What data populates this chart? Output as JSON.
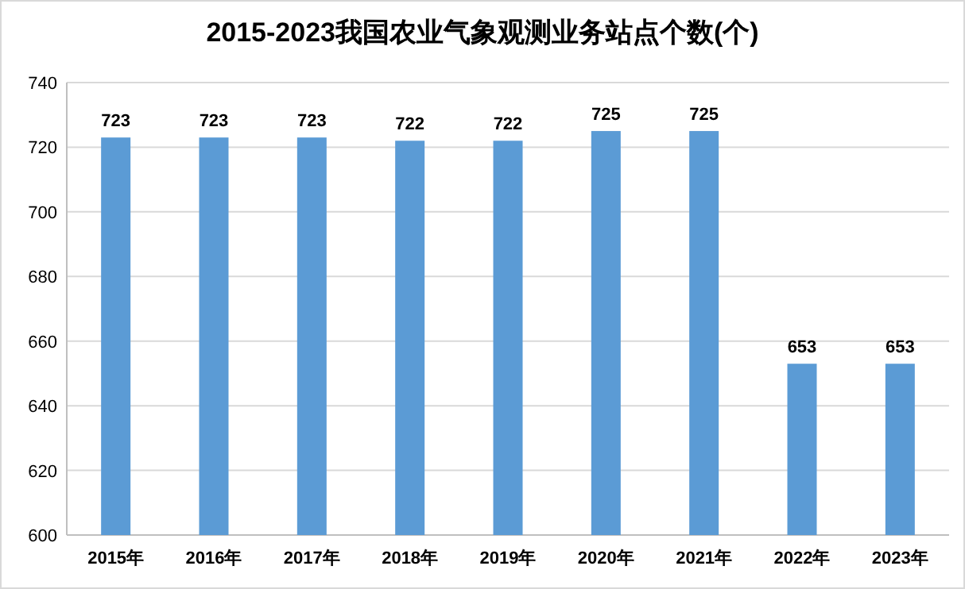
{
  "chart_data": {
    "type": "bar",
    "title": "2015-2023我国农业气象观测业务站点个数(个)",
    "categories": [
      "2015年",
      "2016年",
      "2017年",
      "2018年",
      "2019年",
      "2020年",
      "2021年",
      "2022年",
      "2023年"
    ],
    "values": [
      723,
      723,
      723,
      722,
      722,
      725,
      725,
      653,
      653
    ],
    "color": "#5b9bd5",
    "ylim": [
      600,
      740
    ],
    "yticks": [
      600,
      620,
      640,
      660,
      680,
      700,
      720,
      740
    ],
    "grid": "y",
    "data_labels": true
  }
}
